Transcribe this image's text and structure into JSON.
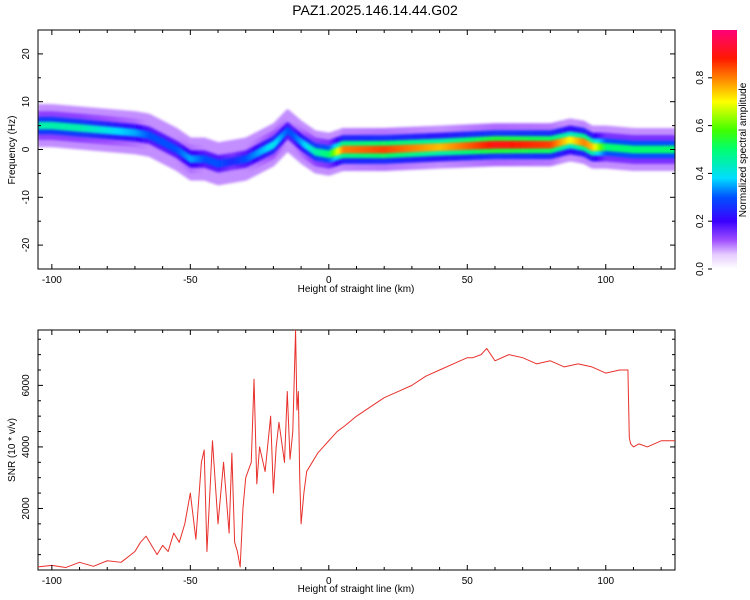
{
  "title": "PAZ1.2025.146.14.44.G02",
  "colors": {
    "line": "#e8312c",
    "axis": "#000000"
  },
  "chart_data": [
    {
      "type": "heatmap",
      "title": "",
      "xlabel": "Height of straight line (km)",
      "ylabel": "Frequency (Hz)",
      "xlim": [
        -105,
        125
      ],
      "ylim": [
        -25,
        25
      ],
      "xticks": [
        "-100",
        "-50",
        "0",
        "50",
        "100"
      ],
      "xtick_values": [
        -100,
        -50,
        0,
        50,
        100
      ],
      "yticks": [
        "-20",
        "-10",
        "0",
        "10",
        "20"
      ],
      "ytick_values": [
        -20,
        -10,
        0,
        10,
        20
      ],
      "colorbar": {
        "label": "Normalized spectral amplitude",
        "range": [
          0,
          1
        ],
        "ticks": [
          "0.0",
          "0.2",
          "0.4",
          "0.6",
          "0.8"
        ],
        "tick_values": [
          0,
          0.2,
          0.4,
          0.6,
          0.8
        ],
        "colormap": "rainbow (white→purple→blue→cyan→green→yellow→orange→red→magenta)"
      },
      "ridge": {
        "x": [
          -100,
          -90,
          -80,
          -70,
          -65,
          -60,
          -55,
          -50,
          -45,
          -40,
          -35,
          -30,
          -25,
          -20,
          -15,
          -13,
          -10,
          -5,
          0,
          5,
          20,
          40,
          60,
          80,
          87,
          92,
          95,
          100,
          110,
          125
        ],
        "frequency": [
          5,
          4.5,
          4,
          3.5,
          3,
          1.5,
          0,
          -2,
          -2,
          -3,
          -2.5,
          -2,
          -0.5,
          1,
          4,
          3,
          1.5,
          -0.5,
          -1,
          0,
          0,
          0.5,
          1,
          1,
          2,
          1.5,
          0.5,
          0.5,
          0,
          0
        ],
        "amplitude": [
          0.45,
          0.45,
          0.4,
          0.35,
          0.3,
          0.3,
          0.3,
          0.35,
          0.3,
          0.3,
          0.25,
          0.3,
          0.35,
          0.4,
          0.3,
          0.3,
          0.35,
          0.45,
          0.5,
          0.8,
          0.85,
          0.75,
          0.9,
          0.85,
          0.7,
          0.8,
          0.75,
          0.5,
          0.5,
          0.5
        ]
      }
    },
    {
      "type": "line",
      "title": "",
      "xlabel": "Height of straight line (km)",
      "ylabel": "SNR (10 * v/v)",
      "xlim": [
        -105,
        125
      ],
      "ylim": [
        0,
        7800
      ],
      "xticks": [
        "-100",
        "-50",
        "0",
        "50",
        "100"
      ],
      "xtick_values": [
        -100,
        -50,
        0,
        50,
        100
      ],
      "yticks": [
        "2000",
        "4000",
        "6000"
      ],
      "ytick_values": [
        2000,
        4000,
        6000
      ],
      "series": [
        {
          "x": [
            -105,
            -100,
            -95,
            -90,
            -85,
            -80,
            -75,
            -70,
            -68,
            -66,
            -64,
            -62,
            -60,
            -58,
            -56,
            -54,
            -52,
            -50,
            -48,
            -46,
            -45,
            -44,
            -42,
            -40,
            -38,
            -36,
            -35,
            -34,
            -33,
            -32,
            -31,
            -30,
            -28,
            -27,
            -26,
            -25,
            -23,
            -21,
            -20,
            -19,
            -18,
            -16,
            -15,
            -14,
            -13,
            -12,
            -11.5,
            -11,
            -10.5,
            -10,
            -9,
            -8,
            -6,
            -4,
            -2,
            0,
            3,
            6,
            10,
            15,
            20,
            25,
            30,
            35,
            40,
            45,
            50,
            52,
            55,
            57,
            60,
            65,
            70,
            75,
            80,
            85,
            90,
            95,
            100,
            105,
            108,
            108.5,
            109,
            110,
            112,
            115,
            120,
            125
          ],
          "values": [
            100,
            150,
            80,
            250,
            120,
            300,
            250,
            600,
            900,
            1100,
            800,
            500,
            800,
            600,
            1200,
            900,
            1500,
            2500,
            1000,
            3500,
            3900,
            600,
            4200,
            1500,
            3500,
            1200,
            3800,
            900,
            600,
            100,
            2000,
            3000,
            3500,
            6200,
            2800,
            4000,
            3200,
            5000,
            2500,
            4000,
            4800,
            3500,
            5800,
            3600,
            4500,
            7800,
            5200,
            5800,
            3000,
            1500,
            2500,
            3200,
            3500,
            3800,
            4000,
            4200,
            4500,
            4700,
            5000,
            5300,
            5600,
            5800,
            6000,
            6300,
            6500,
            6700,
            6900,
            6900,
            7000,
            7200,
            6800,
            7000,
            6900,
            6700,
            6800,
            6600,
            6700,
            6600,
            6400,
            6500,
            6500,
            4300,
            4100,
            4000,
            4100,
            4000,
            4200,
            4200
          ]
        }
      ]
    }
  ]
}
